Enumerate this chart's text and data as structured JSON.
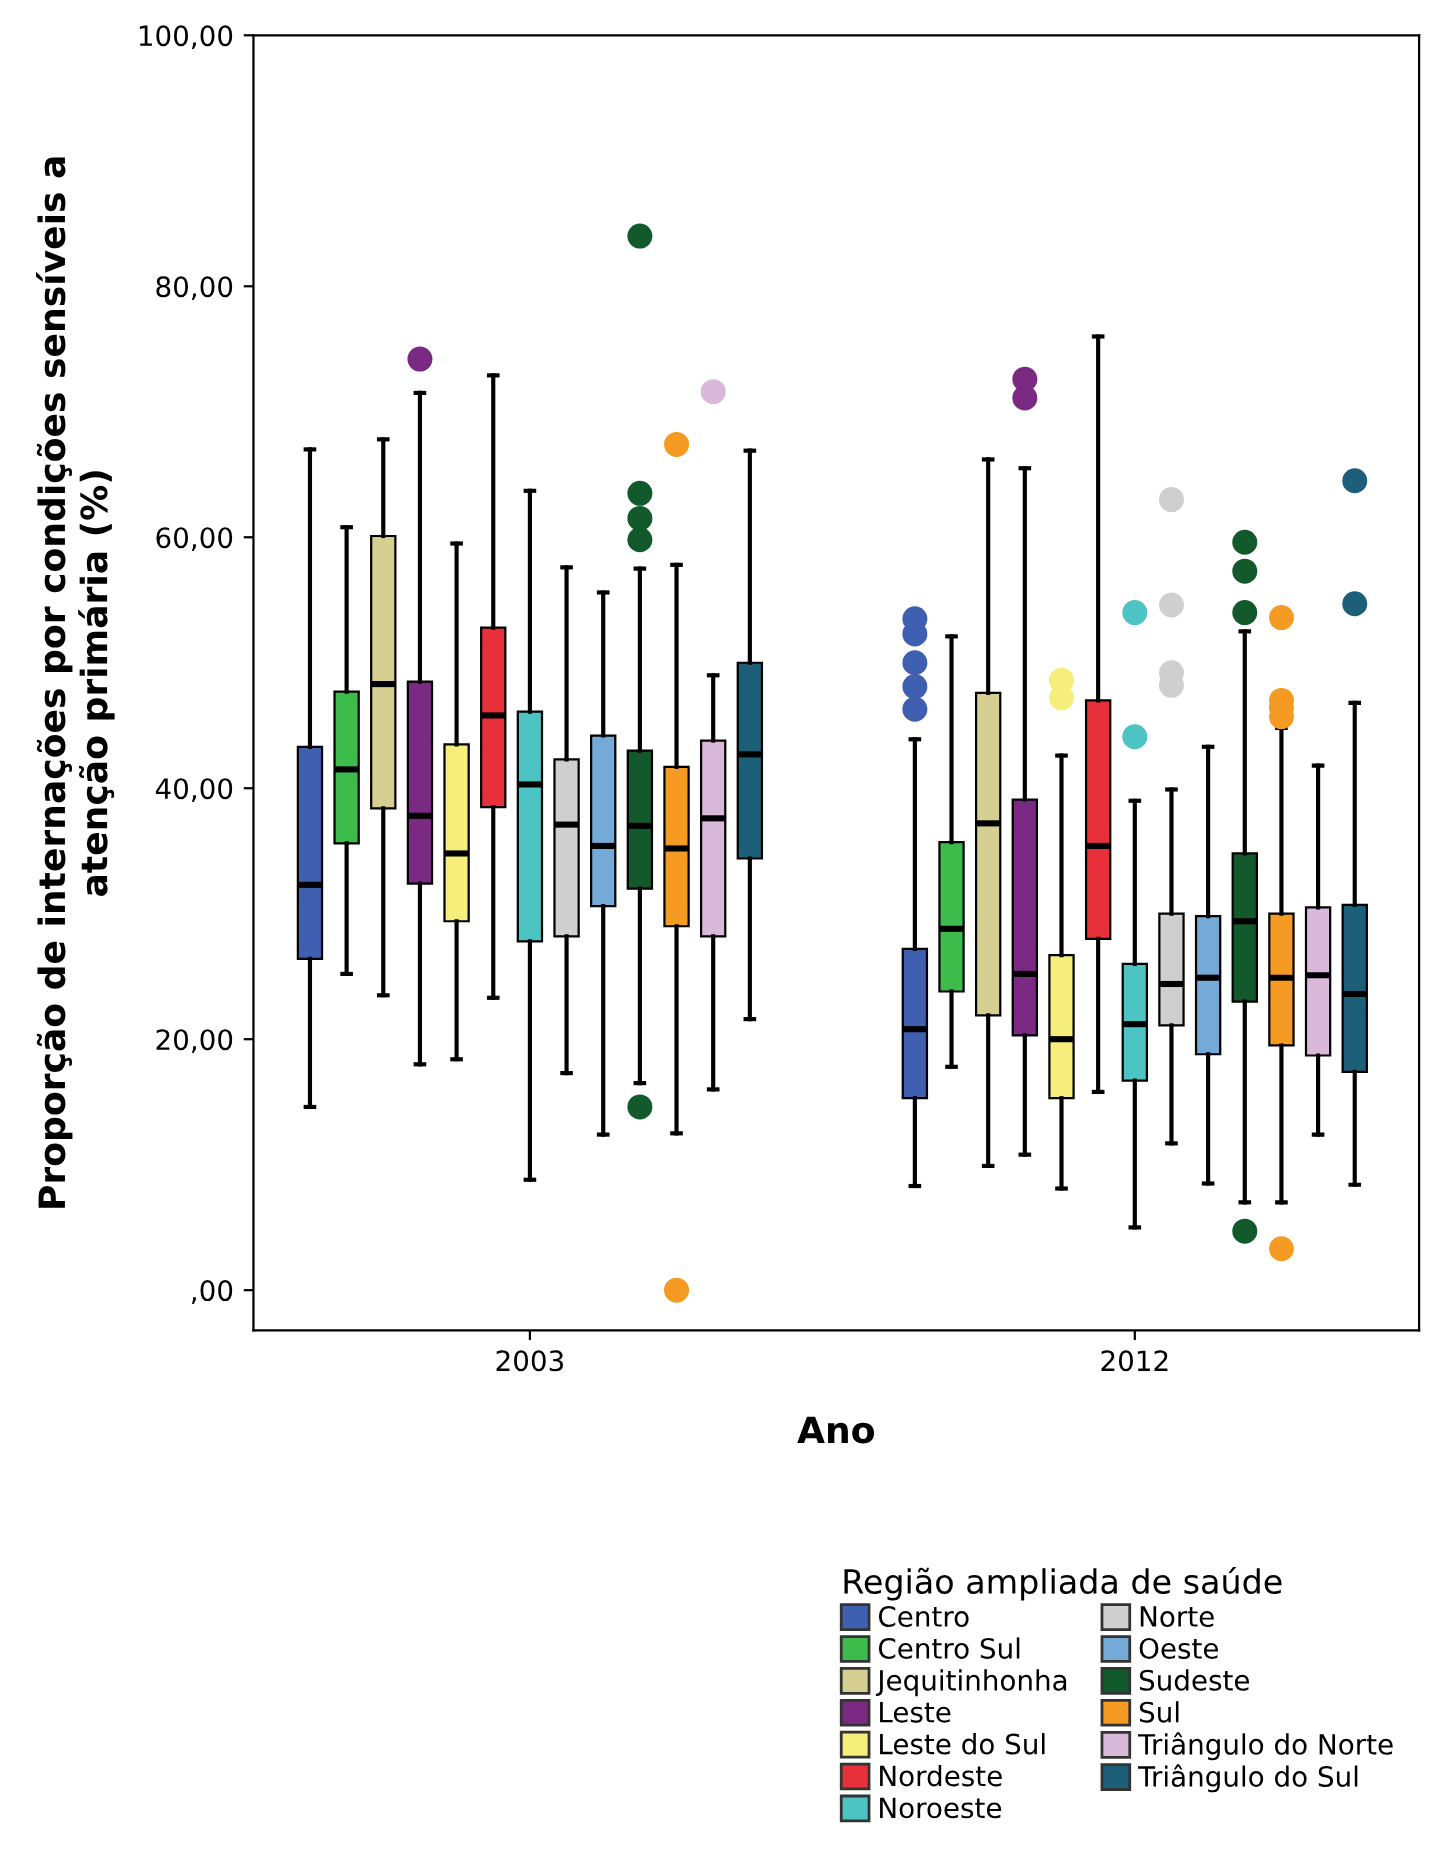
{
  "chart_data": {
    "type": "box",
    "xlabel": "Ano",
    "ylabel": "Proporção de internações por condições sensíveis a\natenção primária (%)",
    "legend_title": "Região ampliada de saúde",
    "legend": "bottom right",
    "grid": false,
    "categories": [
      "2003",
      "2012"
    ],
    "ylim": [
      -3.2,
      100
    ],
    "yticks": [
      {
        "value": 0,
        "label": ",00"
      },
      {
        "value": 20,
        "label": "20,00"
      },
      {
        "value": 40,
        "label": "40,00"
      },
      {
        "value": 60,
        "label": "60,00"
      },
      {
        "value": 80,
        "label": "80,00"
      },
      {
        "value": 100,
        "label": "100,00"
      }
    ],
    "series": [
      {
        "name": "Centro",
        "color": "#3f5fb0",
        "boxes": [
          {
            "low": 14.6,
            "q1": 26.4,
            "median": 32.3,
            "q3": 43.3,
            "high": 67
          },
          {
            "low": 8.3,
            "q1": 15.3,
            "median": 20.8,
            "q3": 27.2,
            "high": 43.9,
            "outliers": [
              53.5,
              52.3,
              50,
              48.1,
              46.3
            ]
          }
        ]
      },
      {
        "name": "Centro Sul",
        "color": "#3dbb4b",
        "boxes": [
          {
            "low": 25.2,
            "q1": 35.6,
            "median": 41.5,
            "q3": 47.7,
            "high": 60.8
          },
          {
            "low": 17.8,
            "q1": 23.8,
            "median": 28.8,
            "q3": 35.7,
            "high": 52.1
          }
        ]
      },
      {
        "name": "Jequitinhonha",
        "color": "#d6cf92",
        "boxes": [
          {
            "low": 23.5,
            "q1": 38.4,
            "median": 48.3,
            "q3": 60.1,
            "high": 67.8
          },
          {
            "low": 9.9,
            "q1": 21.9,
            "median": 37.2,
            "q3": 47.6,
            "high": 66.2
          }
        ]
      },
      {
        "name": "Leste",
        "color": "#7a2a82",
        "boxes": [
          {
            "low": 18,
            "q1": 32.4,
            "median": 37.8,
            "q3": 48.5,
            "high": 71.5,
            "outliers": [
              74.2
            ]
          },
          {
            "low": 10.8,
            "q1": 20.3,
            "median": 25.2,
            "q3": 39.1,
            "high": 65.5,
            "outliers": [
              72.6,
              71.1
            ]
          }
        ]
      },
      {
        "name": "Leste do Sul",
        "color": "#f5ee7a",
        "boxes": [
          {
            "low": 18.4,
            "q1": 29.4,
            "median": 34.8,
            "q3": 43.5,
            "high": 59.5
          },
          {
            "low": 8.1,
            "q1": 15.3,
            "median": 20,
            "q3": 26.7,
            "high": 42.6,
            "outliers": [
              48.6,
              47.2
            ]
          }
        ]
      },
      {
        "name": "Nordeste",
        "color": "#e8303a",
        "boxes": [
          {
            "low": 23.3,
            "q1": 38.5,
            "median": 45.8,
            "q3": 52.8,
            "high": 72.9
          },
          {
            "low": 15.8,
            "q1": 28,
            "median": 35.4,
            "q3": 47,
            "high": 76
          }
        ]
      },
      {
        "name": "Noroeste",
        "color": "#4ec3c4",
        "boxes": [
          {
            "low": 8.8,
            "q1": 27.8,
            "median": 40.3,
            "q3": 46.1,
            "high": 63.7
          },
          {
            "low": 5,
            "q1": 16.7,
            "median": 21.2,
            "q3": 26,
            "high": 39,
            "outliers": [
              54,
              44.1
            ]
          }
        ]
      },
      {
        "name": "Norte",
        "color": "#cfcfcf",
        "boxes": [
          {
            "low": 17.3,
            "q1": 28.2,
            "median": 37.1,
            "q3": 42.3,
            "high": 57.6
          },
          {
            "low": 11.7,
            "q1": 21.1,
            "median": 24.4,
            "q3": 30,
            "high": 39.9,
            "outliers": [
              63,
              54.6,
              49.2,
              48.2
            ]
          }
        ]
      },
      {
        "name": "Oeste",
        "color": "#74a9d8",
        "boxes": [
          {
            "low": 12.4,
            "q1": 30.6,
            "median": 35.4,
            "q3": 44.2,
            "high": 55.6
          },
          {
            "low": 8.5,
            "q1": 18.8,
            "median": 24.9,
            "q3": 29.8,
            "high": 43.3
          }
        ]
      },
      {
        "name": "Sudeste",
        "color": "#125a2c",
        "boxes": [
          {
            "low": 16.5,
            "q1": 32,
            "median": 37,
            "q3": 43,
            "high": 57.5,
            "outliers": [
              84,
              63.5,
              61.5,
              59.8,
              14.6
            ]
          },
          {
            "low": 7,
            "q1": 23,
            "median": 29.4,
            "q3": 34.8,
            "high": 52.5,
            "outliers": [
              59.6,
              57.3,
              54,
              4.7
            ]
          }
        ]
      },
      {
        "name": "Sul",
        "color": "#f59a23",
        "boxes": [
          {
            "low": 12.5,
            "q1": 29,
            "median": 35.2,
            "q3": 41.7,
            "high": 57.8,
            "outliers": [
              67.4,
              0
            ]
          },
          {
            "low": 7,
            "q1": 19.5,
            "median": 24.9,
            "q3": 30,
            "high": 44.8,
            "outliers": [
              53.6,
              47,
              46.4,
              45.7,
              3.3
            ]
          }
        ]
      },
      {
        "name": "Triângulo do Norte",
        "color": "#d9b9da",
        "boxes": [
          {
            "low": 16,
            "q1": 28.2,
            "median": 37.6,
            "q3": 43.8,
            "high": 49,
            "outliers": [
              71.6
            ]
          },
          {
            "low": 12.4,
            "q1": 18.7,
            "median": 25.1,
            "q3": 30.5,
            "high": 41.8
          }
        ]
      },
      {
        "name": "Triângulo do Sul",
        "color": "#1d5f78",
        "boxes": [
          {
            "low": 21.6,
            "q1": 34.4,
            "median": 42.7,
            "q3": 50,
            "high": 66.9
          },
          {
            "low": 8.4,
            "q1": 17.4,
            "median": 23.6,
            "q3": 30.7,
            "high": 46.8,
            "outliers": [
              64.5,
              54.7
            ]
          }
        ]
      }
    ]
  }
}
